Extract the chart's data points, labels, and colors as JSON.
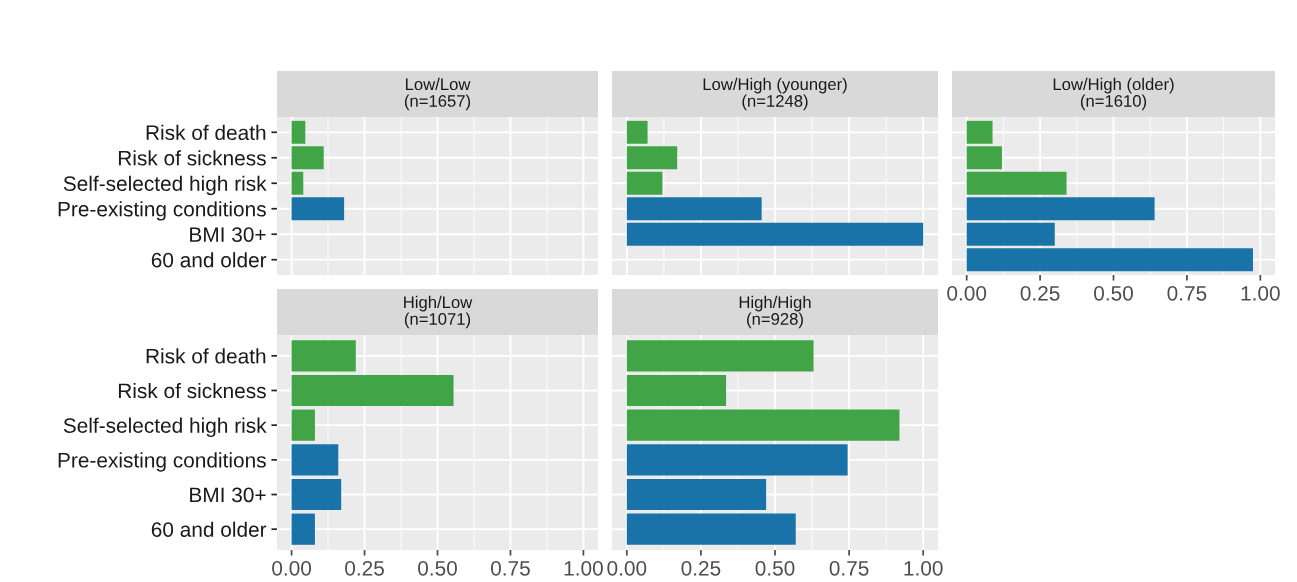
{
  "chart_data": [
    {
      "type": "bar",
      "orientation": "horizontal",
      "title": "Low/Low\n(n=1657)",
      "categories": [
        "Risk of death",
        "Risk of sickness",
        "Self-selected high risk",
        "Pre-existing conditions",
        "BMI 30+",
        "60 and older"
      ],
      "values": [
        0.047,
        0.11,
        0.04,
        0.18,
        0,
        0
      ],
      "colors": [
        "#41a447",
        "#41a447",
        "#41a447",
        "#1a73a8",
        "#1a73a8",
        "#1a73a8"
      ],
      "xlim": [
        -0.05,
        1.05
      ],
      "xticks": [
        {
          "value": 0,
          "label": null
        },
        {
          "value": 0.25,
          "label": null
        },
        {
          "value": 0.5,
          "label": null
        },
        {
          "value": 0.75,
          "label": null
        },
        {
          "value": 1,
          "label": null
        }
      ],
      "grid": true,
      "tick_labels": "y"
    },
    {
      "type": "bar",
      "orientation": "horizontal",
      "title": "Low/High (younger)\n(n=1248)",
      "categories": [
        null,
        null,
        null,
        null,
        null,
        null
      ],
      "values": [
        0.07,
        0.17,
        0.12,
        0.455,
        1.0,
        0
      ],
      "colors": [
        "#41a447",
        "#41a447",
        "#41a447",
        "#1a73a8",
        "#1a73a8",
        "#1a73a8"
      ],
      "xlim": [
        -0.05,
        1.05
      ],
      "xticks": [
        {
          "value": 0,
          "label": null
        },
        {
          "value": 0.25,
          "label": null
        },
        {
          "value": 0.5,
          "label": null
        },
        {
          "value": 0.75,
          "label": null
        },
        {
          "value": 1,
          "label": null
        }
      ],
      "grid": true,
      "tick_labels": false
    },
    {
      "type": "bar",
      "orientation": "horizontal",
      "title": "Low/High (older)\n(n=1610)",
      "categories": [
        null,
        null,
        null,
        null,
        null,
        null
      ],
      "values": [
        0.088,
        0.12,
        0.34,
        0.64,
        0.3,
        0.975
      ],
      "colors": [
        "#41a447",
        "#41a447",
        "#41a447",
        "#1a73a8",
        "#1a73a8",
        "#1a73a8"
      ],
      "xlim": [
        -0.05,
        1.05
      ],
      "xticks": [
        {
          "value": 0,
          "label": "0.00"
        },
        {
          "value": 0.25,
          "label": "0.25"
        },
        {
          "value": 0.5,
          "label": "0.50"
        },
        {
          "value": 0.75,
          "label": "0.75"
        },
        {
          "value": 1,
          "label": "1.00"
        }
      ],
      "grid": true,
      "tick_labels": "x"
    },
    {
      "type": "bar",
      "orientation": "horizontal",
      "title": "High/Low\n(n=1071)",
      "categories": [
        "Risk of death",
        "Risk of sickness",
        "Self-selected high risk",
        "Pre-existing conditions",
        "BMI 30+",
        "60 and older"
      ],
      "values": [
        0.22,
        0.555,
        0.08,
        0.16,
        0.17,
        0.08
      ],
      "colors": [
        "#41a447",
        "#41a447",
        "#41a447",
        "#1a73a8",
        "#1a73a8",
        "#1a73a8"
      ],
      "xlim": [
        -0.05,
        1.05
      ],
      "xticks": [
        {
          "value": 0,
          "label": "0.00"
        },
        {
          "value": 0.25,
          "label": "0.25"
        },
        {
          "value": 0.5,
          "label": "0.50"
        },
        {
          "value": 0.75,
          "label": "0.75"
        },
        {
          "value": 1,
          "label": "1.00"
        }
      ],
      "grid": true
    },
    {
      "type": "bar",
      "orientation": "horizontal",
      "title": "High/High\n(n=928)",
      "categories": [
        null,
        null,
        null,
        null,
        null,
        null
      ],
      "values": [
        0.63,
        0.335,
        0.92,
        0.745,
        0.47,
        0.57
      ],
      "colors": [
        "#41a447",
        "#41a447",
        "#41a447",
        "#1a73a8",
        "#1a73a8",
        "#1a73a8"
      ],
      "xlim": [
        -0.05,
        1.05
      ],
      "xticks": [
        {
          "value": 0,
          "label": "0.00"
        },
        {
          "value": 0.25,
          "label": "0.25"
        },
        {
          "value": 0.5,
          "label": "0.50"
        },
        {
          "value": 0.75,
          "label": "0.75"
        },
        {
          "value": 1,
          "label": "1.00"
        }
      ],
      "grid": true,
      "tick_labels": "x"
    }
  ]
}
